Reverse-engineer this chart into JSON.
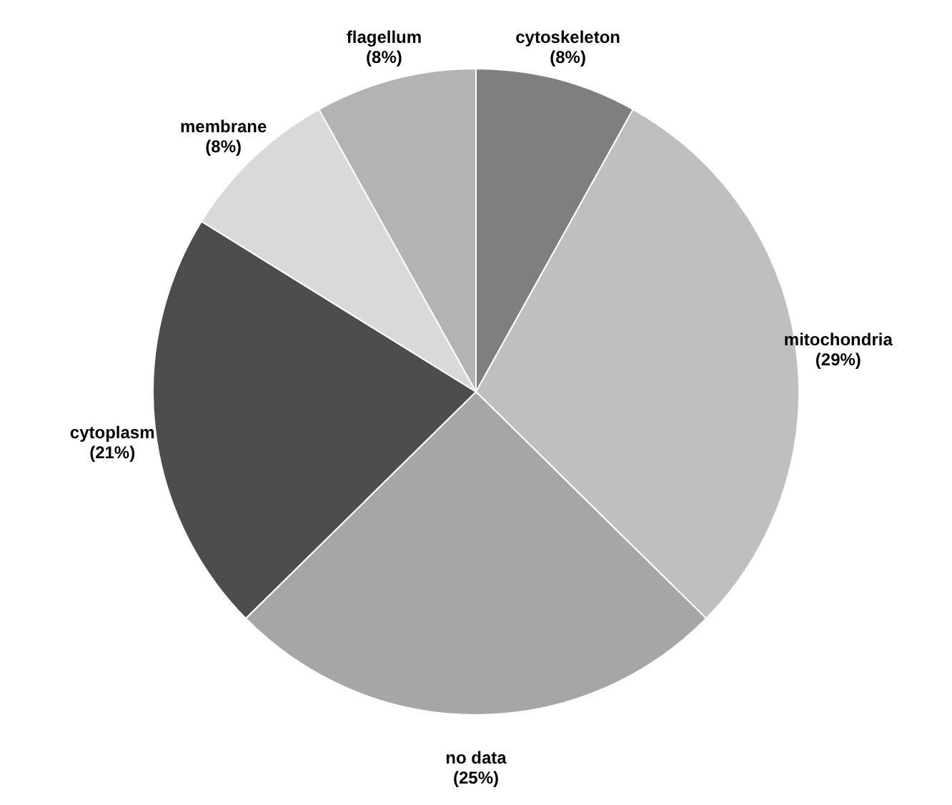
{
  "chart_data": {
    "type": "pie",
    "categories": [
      "cytoskeleton",
      "mitochondria",
      "no data",
      "cytoplasm",
      "membrane",
      "flagellum"
    ],
    "values": [
      8,
      29,
      25,
      21,
      8,
      8
    ],
    "value_labels": [
      "(8%)",
      "(29%)",
      "(25%)",
      "(21%)",
      "(8%)",
      "(8%)"
    ],
    "colors": [
      "#7f7f7f",
      "#bfbfbf",
      "#a6a6a6",
      "#4d4d4d",
      "#d9d9d9",
      "#b3b3b3"
    ]
  }
}
